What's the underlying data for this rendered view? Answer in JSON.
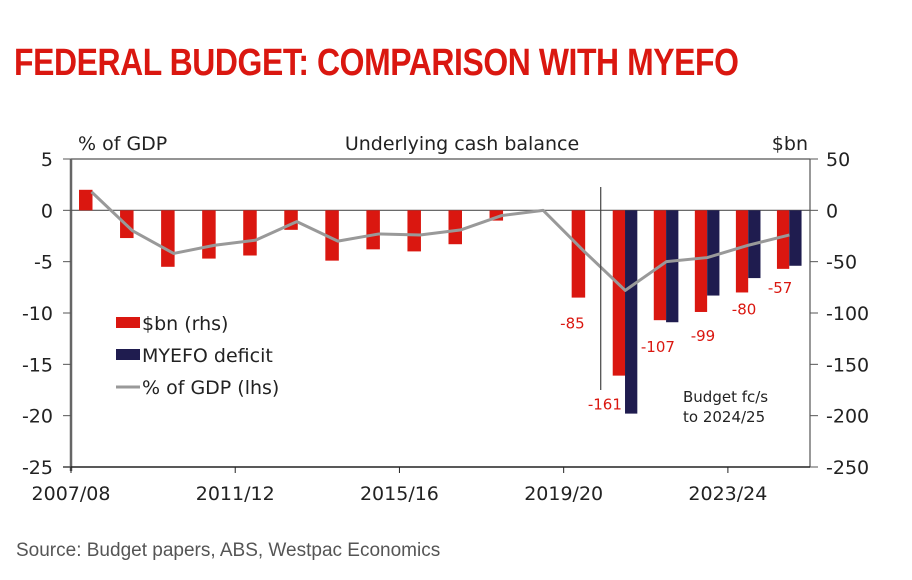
{
  "title": "FEDERAL BUDGET: COMPARISON WITH MYEFO",
  "source": "Source: Budget papers, ABS, Westpac Economics",
  "colors": {
    "title": "#DA1710",
    "budget_bar": "#DA1710",
    "myefo_bar": "#1F1C4F",
    "gdp_line": "#999999",
    "axis": "#555555"
  },
  "chart_data": {
    "type": "bar",
    "title": "Underlying cash balance",
    "ylabel_left": "% of GDP",
    "ylabel_right": "$bn",
    "ylim_left": [
      -25,
      5
    ],
    "ylim_right": [
      -250,
      50
    ],
    "yticks_left": [
      "5",
      "0",
      "-5",
      "-10",
      "-15",
      "-20",
      "-25"
    ],
    "yticks_left_values": [
      5,
      0,
      -5,
      -10,
      -15,
      -20,
      -25
    ],
    "yticks_right": [
      "50",
      "0",
      "-50",
      "-100",
      "-150",
      "-200",
      "-250"
    ],
    "yticks_right_values": [
      50,
      0,
      -50,
      -100,
      -150,
      -200,
      -250
    ],
    "xtick_labels": [
      "2007/08",
      "2011/12",
      "2015/16",
      "2019/20",
      "2023/24"
    ],
    "xtick_indices": [
      0,
      4,
      8,
      12,
      16
    ],
    "categories": [
      "2007/08",
      "2008/09",
      "2009/10",
      "2010/11",
      "2011/12",
      "2012/13",
      "2013/14",
      "2014/15",
      "2015/16",
      "2016/17",
      "2017/18",
      "2018/19",
      "2019/20",
      "2020/21",
      "2021/22",
      "2022/23",
      "2023/24",
      "2024/25"
    ],
    "grid": false,
    "legend_position": "left-middle",
    "series": [
      {
        "name": "$bn (rhs)",
        "type": "bar",
        "axis": "right",
        "values": [
          20,
          -27,
          -55,
          -47,
          -44,
          -19,
          -49,
          -38,
          -40,
          -33,
          -10,
          0,
          -85,
          -161,
          -107,
          -99,
          -80,
          -57
        ]
      },
      {
        "name": "MYEFO deficit",
        "type": "bar",
        "axis": "right",
        "values": [
          null,
          null,
          null,
          null,
          null,
          null,
          null,
          null,
          null,
          null,
          null,
          null,
          null,
          -198,
          -109,
          -83,
          -66,
          -54
        ]
      },
      {
        "name": "% of GDP (lhs)",
        "type": "line",
        "axis": "left",
        "values": [
          1.8,
          -2.0,
          -4.2,
          -3.4,
          -2.9,
          -1.1,
          -3.0,
          -2.3,
          -2.4,
          -1.9,
          -0.5,
          0.0,
          -4.0,
          -7.8,
          -5.0,
          -4.6,
          -3.4,
          -2.4
        ]
      }
    ],
    "data_labels": [
      {
        "index": 12,
        "text": "-85"
      },
      {
        "index": 13,
        "text": "-161"
      },
      {
        "index": 14,
        "text": "-107"
      },
      {
        "index": 15,
        "text": "-99"
      },
      {
        "index": 16,
        "text": "-80"
      },
      {
        "index": 17,
        "text": "-57"
      }
    ],
    "divider_after_index": 12,
    "annotation": [
      "Budget fc/s",
      "to 2024/25"
    ]
  }
}
